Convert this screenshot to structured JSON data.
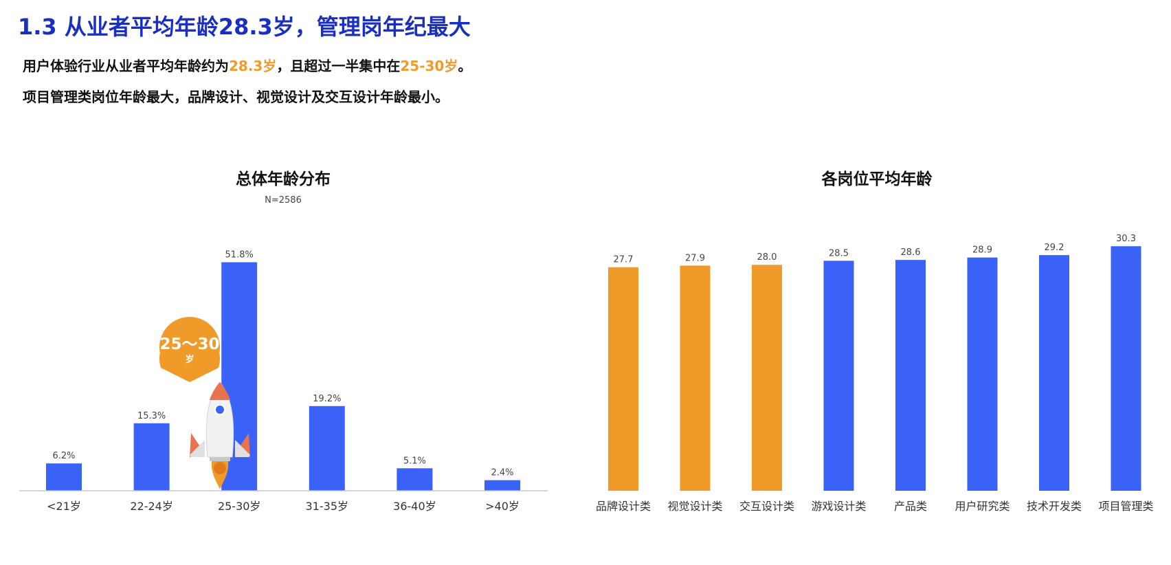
{
  "header": {
    "title": "1.3 从业者平均年龄28.3岁，管理岗年纪最大",
    "line1": {
      "part1": "用户体验行业从业者平均年龄约为",
      "highlight1": "28.3岁",
      "part2": "，且超过一半集中在",
      "highlight2": "25-30岁",
      "part3": "。"
    },
    "line2": "项目管理类岗位年龄最大，品牌设计、视觉设计及交互设计年龄最小。"
  },
  "callout": {
    "range": "25～30",
    "unit": "岁",
    "icon": "rocket-icon"
  },
  "colors": {
    "blue": "#3a62f6",
    "orange": "#f09a2a",
    "title_blue": "#1a2fc0"
  },
  "chart_data": [
    {
      "type": "bar",
      "title": "总体年龄分布",
      "subtitle": "N=2586",
      "categories": [
        "<21岁",
        "22-24岁",
        "25-30岁",
        "31-35岁",
        "36-40岁",
        ">40岁"
      ],
      "values": [
        6.2,
        15.3,
        51.8,
        19.2,
        5.1,
        2.4
      ],
      "value_labels": [
        "6.2%",
        "15.3%",
        "51.8%",
        "19.2%",
        "5.1%",
        "2.4%"
      ],
      "ylim": [
        0,
        55
      ],
      "grid": false,
      "colors": [
        "#3a62f6",
        "#3a62f6",
        "#3a62f6",
        "#3a62f6",
        "#3a62f6",
        "#3a62f6"
      ]
    },
    {
      "type": "bar",
      "title": "各岗位平均年龄",
      "categories": [
        "品牌设计类",
        "视觉设计类",
        "交互设计类",
        "游戏设计类",
        "产品类",
        "用户研究类",
        "技术开发类",
        "项目管理类"
      ],
      "values": [
        27.7,
        27.9,
        28.0,
        28.5,
        28.6,
        28.9,
        29.2,
        30.3
      ],
      "value_labels": [
        "27.7",
        "27.9",
        "28.0",
        "28.5",
        "28.6",
        "28.9",
        "29.2",
        "30.3"
      ],
      "ylim": [
        0,
        31
      ],
      "grid": false,
      "colors": [
        "#f09a2a",
        "#f09a2a",
        "#f09a2a",
        "#3a62f6",
        "#3a62f6",
        "#3a62f6",
        "#3a62f6",
        "#3a62f6"
      ]
    }
  ]
}
